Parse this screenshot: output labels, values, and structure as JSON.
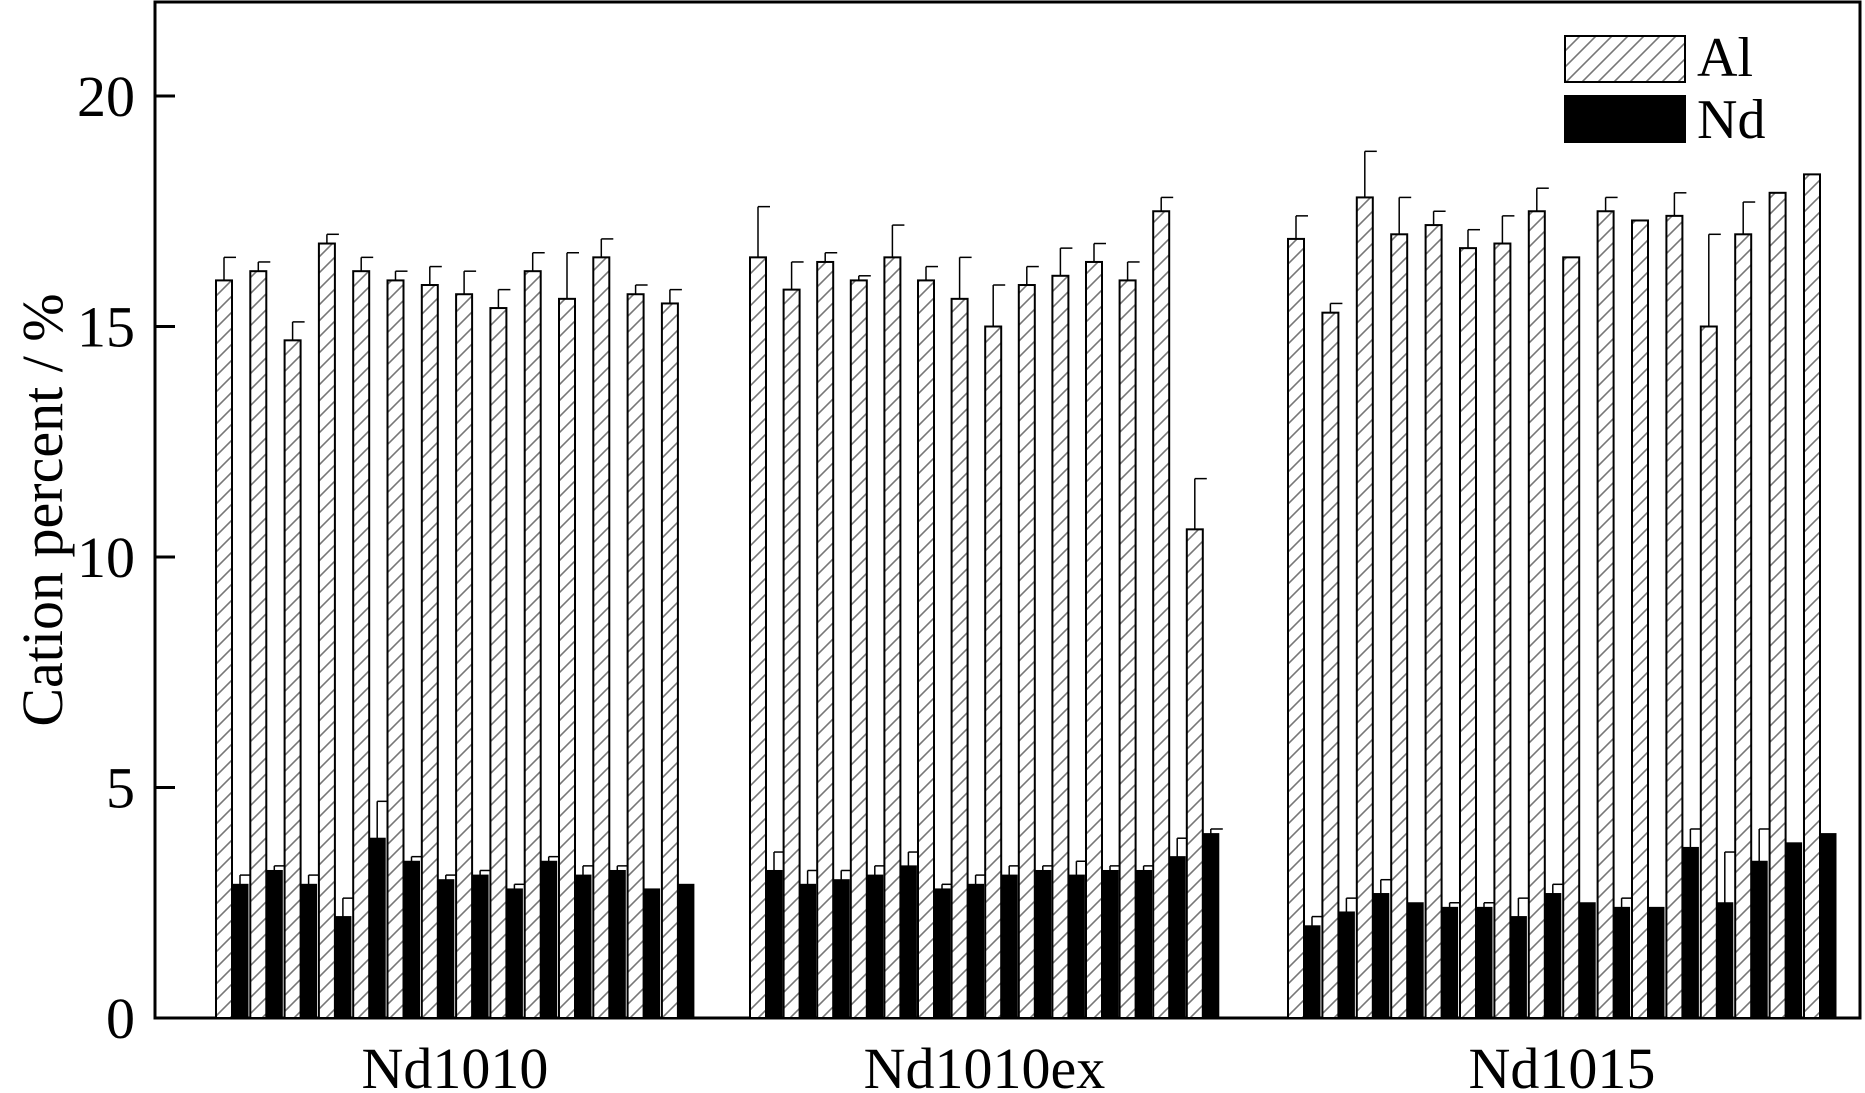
{
  "chart_data": {
    "type": "bar",
    "ylabel": "Cation percent / %",
    "xlabel": "",
    "ylim": [
      0,
      22
    ],
    "yticks": [
      0,
      5,
      10,
      15,
      20
    ],
    "groups": [
      "Nd1010",
      "Nd1010ex",
      "Nd1015"
    ],
    "legend": {
      "placement": "top-right"
    },
    "series": [
      {
        "name": "Al",
        "pattern": "hatched",
        "values": [
          [
            16.0,
            16.2,
            14.7,
            16.8,
            16.2,
            16.0,
            15.9,
            15.7,
            15.4,
            16.2,
            15.6,
            16.5,
            15.7,
            15.5
          ],
          [
            16.5,
            15.8,
            16.4,
            16.0,
            16.5,
            16.0,
            15.6,
            15.0,
            15.9,
            16.1,
            16.4,
            16.0,
            17.5,
            10.6
          ],
          [
            16.9,
            15.3,
            17.8,
            17.0,
            17.2,
            16.7,
            16.8,
            17.5,
            16.5,
            17.5,
            17.3,
            17.4,
            15.0,
            17.0,
            17.9,
            18.3
          ]
        ],
        "errors": [
          [
            0.5,
            0.2,
            0.4,
            0.2,
            0.3,
            0.2,
            0.4,
            0.5,
            0.4,
            0.4,
            1.0,
            0.4,
            0.2,
            0.3
          ],
          [
            1.1,
            0.6,
            0.2,
            0.1,
            0.7,
            0.3,
            0.9,
            0.9,
            0.4,
            0.6,
            0.4,
            0.4,
            0.3,
            1.1
          ],
          [
            0.5,
            0.2,
            1.0,
            0.8,
            0.3,
            0.4,
            0.6,
            0.5,
            0.0,
            0.3,
            0.0,
            0.5,
            2.0,
            0.7,
            0.0,
            0.0
          ]
        ]
      },
      {
        "name": "Nd",
        "pattern": "solid",
        "values": [
          [
            2.9,
            3.2,
            2.9,
            2.2,
            3.9,
            3.4,
            3.0,
            3.1,
            2.8,
            3.4,
            3.1,
            3.2,
            2.8,
            2.9
          ],
          [
            3.2,
            2.9,
            3.0,
            3.1,
            3.3,
            2.8,
            2.9,
            3.1,
            3.2,
            3.1,
            3.2,
            3.2,
            3.5,
            4.0
          ],
          [
            2.0,
            2.3,
            2.7,
            2.5,
            2.4,
            2.4,
            2.2,
            2.7,
            2.5,
            2.4,
            2.4,
            3.7,
            2.5,
            3.4,
            3.8,
            4.0
          ]
        ],
        "errors": [
          [
            0.2,
            0.1,
            0.2,
            0.4,
            0.8,
            0.1,
            0.1,
            0.1,
            0.1,
            0.1,
            0.2,
            0.1,
            0.0,
            0.0
          ],
          [
            0.4,
            0.3,
            0.2,
            0.2,
            0.3,
            0.1,
            0.2,
            0.2,
            0.1,
            0.3,
            0.1,
            0.1,
            0.4,
            0.1
          ],
          [
            0.2,
            0.3,
            0.3,
            0.0,
            0.1,
            0.1,
            0.4,
            0.2,
            0.0,
            0.2,
            0.0,
            0.4,
            1.1,
            0.7,
            0.0,
            0.0
          ]
        ]
      }
    ]
  }
}
